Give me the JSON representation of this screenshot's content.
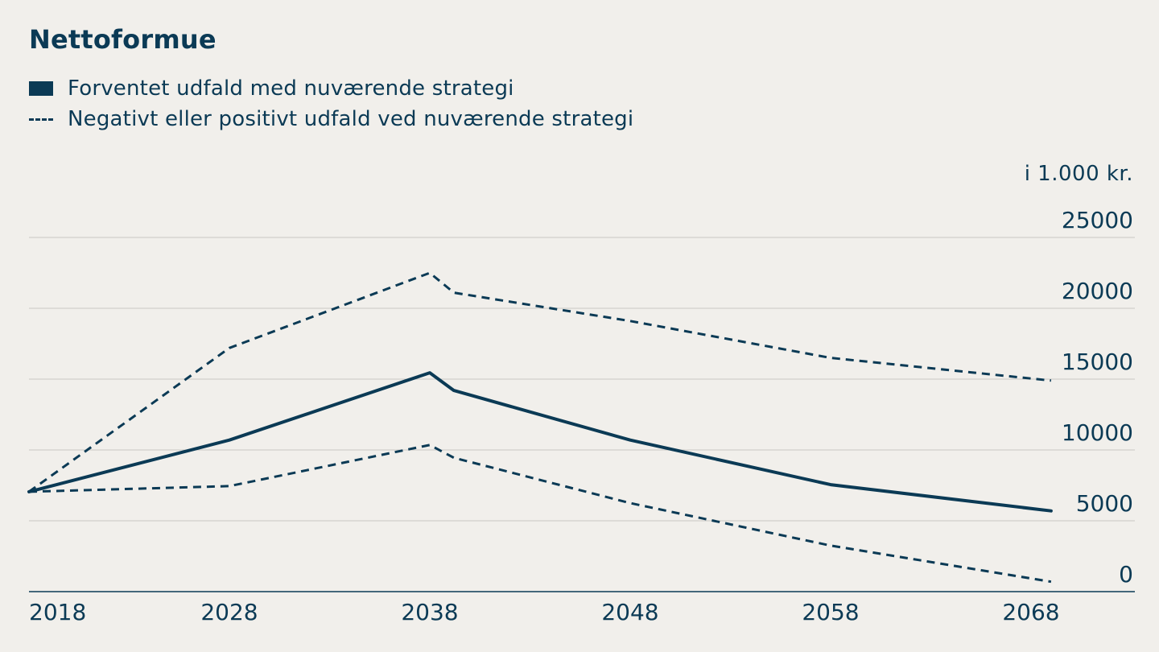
{
  "chart_data": {
    "type": "line",
    "title": "Nettoformue",
    "unit_label": "i 1.000 kr.",
    "legend_placement": "top-left",
    "grid": true,
    "color": "#0b3a55",
    "ylim": [
      0,
      25000
    ],
    "yticks": [
      "25000",
      "20000",
      "15000",
      "10000",
      "5000",
      "0"
    ],
    "xticks": [
      "2018",
      "2028",
      "2038",
      "2048",
      "2058",
      "2068"
    ],
    "series": [
      {
        "name": "Forventet udfald med nuværende strategi",
        "style": "solid",
        "x": [
          2018,
          2028,
          2038,
          2039.2,
          2048,
          2058,
          2069
        ],
        "y": [
          7050,
          10700,
          15450,
          14200,
          10700,
          7550,
          5700
        ]
      },
      {
        "name": "Negativt eller positivt udfald ved nuværende strategi",
        "style": "dashed",
        "x": [
          2018,
          2028,
          2038,
          2039.2,
          2048,
          2058,
          2069
        ],
        "y": [
          7050,
          17200,
          22500,
          21100,
          19100,
          16500,
          14900
        ]
      },
      {
        "style": "dashed",
        "x": [
          2018,
          2028,
          2038,
          2039.2,
          2048,
          2058,
          2069
        ],
        "y": [
          7050,
          7450,
          10350,
          9450,
          6250,
          3250,
          700
        ]
      }
    ]
  }
}
